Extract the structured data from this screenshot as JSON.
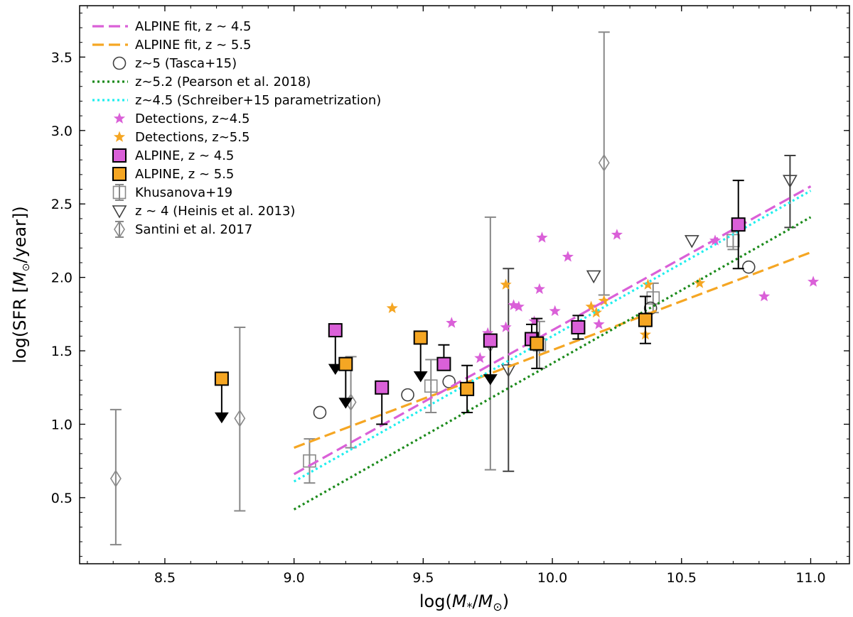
{
  "chart_data": {
    "type": "scatter",
    "xlabel": {
      "pre": "log(",
      "var": "M",
      "sub": "*",
      "mid": "/",
      "var2": "M",
      "sub2": "⊙",
      "post": ")"
    },
    "ylabel": {
      "pre": "log(SFR [",
      "var": "M",
      "sub": "⊙",
      "post": "/year])"
    },
    "xlim": [
      8.17,
      11.15
    ],
    "ylim": [
      0.05,
      3.85
    ],
    "xticks": [
      {
        "value": 8.5,
        "label": "8.5"
      },
      {
        "value": 9.0,
        "label": "9.0"
      },
      {
        "value": 9.5,
        "label": "9.5"
      },
      {
        "value": 10.0,
        "label": "10.0"
      },
      {
        "value": 10.5,
        "label": "10.5"
      },
      {
        "value": 11.0,
        "label": "11.0"
      }
    ],
    "yticks": [
      {
        "value": 0.5,
        "label": "0.5"
      },
      {
        "value": 1.0,
        "label": "1.0"
      },
      {
        "value": 1.5,
        "label": "1.5"
      },
      {
        "value": 2.0,
        "label": "2.0"
      },
      {
        "value": 2.5,
        "label": "2.5"
      },
      {
        "value": 3.0,
        "label": "3.0"
      },
      {
        "value": 3.5,
        "label": "3.5"
      }
    ],
    "colors": {
      "magenta": "#DA60D8",
      "orange": "#F5A623",
      "dark_gray": "#404040",
      "gray": "#888888",
      "green": "#1A8A1A",
      "cyan": "#22EEEE",
      "black": "#000000"
    },
    "series": [
      {
        "id": "alpine_fit_45",
        "name": "ALPINE fit, z ∼ 4.5",
        "kind": "line",
        "style": "dashed",
        "color": "#DA60D8",
        "x": [
          9.0,
          11.0
        ],
        "y": [
          0.66,
          2.62
        ]
      },
      {
        "id": "alpine_fit_55",
        "name": "ALPINE fit, z ∼ 5.5",
        "kind": "line",
        "style": "dashed",
        "color": "#F5A623",
        "x": [
          9.0,
          11.0
        ],
        "y": [
          0.84,
          2.17
        ]
      },
      {
        "id": "tasca15",
        "name": "z∼5 (Tasca+15)",
        "kind": "open_circle",
        "color": "#404040",
        "points": [
          {
            "x": 9.1,
            "y": 1.08
          },
          {
            "x": 9.44,
            "y": 1.2
          },
          {
            "x": 9.6,
            "y": 1.29
          },
          {
            "x": 10.38,
            "y": 1.79
          },
          {
            "x": 10.76,
            "y": 2.07
          }
        ]
      },
      {
        "id": "pearson18",
        "name": "z∼5.2 (Pearson et al. 2018)",
        "kind": "line",
        "style": "dotted",
        "color": "#1A8A1A",
        "x": [
          9.0,
          11.0
        ],
        "y": [
          0.42,
          2.41
        ]
      },
      {
        "id": "schreiber15",
        "name": "z∼4.5 (Schreiber+15 parametrization)",
        "kind": "line",
        "style": "dotted",
        "color": "#22EEEE",
        "x": [
          9.0,
          11.0
        ],
        "y": [
          0.61,
          2.59
        ]
      },
      {
        "id": "detections_45",
        "name": "Detections, z∼4.5",
        "kind": "star",
        "color": "#DA60D8",
        "points": [
          {
            "x": 9.61,
            "y": 1.69
          },
          {
            "x": 9.72,
            "y": 1.45
          },
          {
            "x": 9.75,
            "y": 1.62
          },
          {
            "x": 9.82,
            "y": 1.66
          },
          {
            "x": 9.85,
            "y": 1.81
          },
          {
            "x": 9.87,
            "y": 1.8
          },
          {
            "x": 9.93,
            "y": 1.7
          },
          {
            "x": 9.95,
            "y": 1.92
          },
          {
            "x": 9.96,
            "y": 2.27
          },
          {
            "x": 10.01,
            "y": 1.77
          },
          {
            "x": 10.06,
            "y": 2.14
          },
          {
            "x": 10.18,
            "y": 1.68
          },
          {
            "x": 10.25,
            "y": 2.29
          },
          {
            "x": 10.63,
            "y": 2.25
          },
          {
            "x": 10.82,
            "y": 1.87
          },
          {
            "x": 11.01,
            "y": 1.97
          }
        ]
      },
      {
        "id": "detections_55",
        "name": "Detections, z∼5.5",
        "kind": "star",
        "color": "#F5A623",
        "points": [
          {
            "x": 9.38,
            "y": 1.79
          },
          {
            "x": 9.82,
            "y": 1.95
          },
          {
            "x": 10.15,
            "y": 1.8
          },
          {
            "x": 10.17,
            "y": 1.76
          },
          {
            "x": 10.2,
            "y": 1.84
          },
          {
            "x": 10.36,
            "y": 1.61
          },
          {
            "x": 10.37,
            "y": 1.95
          },
          {
            "x": 10.57,
            "y": 1.96
          }
        ]
      },
      {
        "id": "alpine_45",
        "name": "ALPINE, z ∼ 4.5",
        "kind": "filled_square",
        "color": "#DA60D8",
        "edge": "#000000",
        "points": [
          {
            "x": 9.16,
            "y": 1.64,
            "upper_limit": true
          },
          {
            "x": 9.34,
            "y": 1.25,
            "err_low": 0.25
          },
          {
            "x": 9.58,
            "y": 1.41,
            "err_high": 0.13
          },
          {
            "x": 9.76,
            "y": 1.57,
            "upper_limit": true
          },
          {
            "x": 9.92,
            "y": 1.58,
            "err_high": 0.1
          },
          {
            "x": 10.1,
            "y": 1.66,
            "err_low": 0.08,
            "err_high": 0.08
          },
          {
            "x": 10.72,
            "y": 2.36,
            "err_low": 0.3,
            "err_high": 0.3
          }
        ]
      },
      {
        "id": "alpine_55",
        "name": "ALPINE, z ∼ 5.5",
        "kind": "filled_square",
        "color": "#F5A623",
        "edge": "#000000",
        "points": [
          {
            "x": 8.72,
            "y": 1.31,
            "upper_limit": true
          },
          {
            "x": 9.2,
            "y": 1.41,
            "upper_limit": true
          },
          {
            "x": 9.49,
            "y": 1.59,
            "upper_limit": true
          },
          {
            "x": 9.67,
            "y": 1.24,
            "err_low": 0.16,
            "err_high": 0.16
          },
          {
            "x": 9.94,
            "y": 1.55,
            "err_low": 0.17,
            "err_high": 0.17
          },
          {
            "x": 10.36,
            "y": 1.71,
            "err_low": 0.16,
            "err_high": 0.16
          }
        ]
      },
      {
        "id": "khusanova19",
        "name": "Khusanova+19",
        "kind": "open_square",
        "color": "#888888",
        "points": [
          {
            "x": 9.06,
            "y": 0.75,
            "err_low": 0.15,
            "err_high": 0.15
          },
          {
            "x": 9.53,
            "y": 1.26,
            "err_low": 0.18,
            "err_high": 0.18
          },
          {
            "x": 9.95,
            "y": 1.54,
            "err_low": 0.16,
            "err_high": 0.16
          },
          {
            "x": 10.39,
            "y": 1.86,
            "err_low": 0.1,
            "err_high": 0.1
          },
          {
            "x": 10.7,
            "y": 2.25,
            "err_low": 0.06,
            "err_high": 0.06
          }
        ]
      },
      {
        "id": "heinis13",
        "name": "z ∼ 4 (Heinis et al. 2013)",
        "kind": "open_triangle_down",
        "color": "#404040",
        "points": [
          {
            "x": 9.83,
            "y": 1.37,
            "err_low": 0.69,
            "err_high": 0.69
          },
          {
            "x": 10.16,
            "y": 2.01
          },
          {
            "x": 10.54,
            "y": 2.25
          },
          {
            "x": 10.92,
            "y": 2.66,
            "err_low": 0.32,
            "err_high": 0.17
          }
        ]
      },
      {
        "id": "santini17",
        "name": "Santini et al. 2017",
        "kind": "open_diamond",
        "color": "#888888",
        "points": [
          {
            "x": 8.31,
            "y": 0.63,
            "err_low": 0.45,
            "err_high": 0.47
          },
          {
            "x": 8.79,
            "y": 1.04,
            "err_low": 0.63,
            "err_high": 0.62
          },
          {
            "x": 9.22,
            "y": 1.15,
            "err_low": 0.31,
            "err_high": 0.31
          },
          {
            "x": 9.76,
            "y": 1.55,
            "err_low": 0.86,
            "err_high": 0.86
          },
          {
            "x": 10.2,
            "y": 2.78,
            "err_low": 0.9,
            "err_high": 0.89
          }
        ]
      }
    ],
    "legend": {
      "position": "top-left",
      "entries": [
        "ALPINE fit, z ∼ 4.5",
        "ALPINE fit, z ∼ 5.5",
        "z∼5 (Tasca+15)",
        "z∼5.2 (Pearson et al. 2018)",
        "z∼4.5 (Schreiber+15 parametrization)",
        "Detections, z∼4.5",
        "Detections, z∼5.5",
        "ALPINE, z ∼ 4.5",
        "ALPINE, z ∼ 5.5",
        "Khusanova+19",
        "z ∼ 4 (Heinis et al. 2013)",
        "Santini et al. 2017"
      ]
    }
  }
}
